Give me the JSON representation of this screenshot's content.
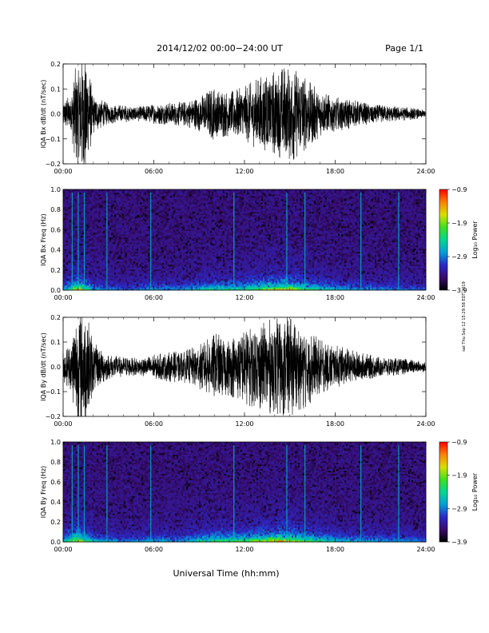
{
  "header": {
    "title": "2014/12/02   00:00−24:00 UT",
    "page": "Page 1/1"
  },
  "side_note": "sat Thu Sep 12 15:29:58 EDT 2019",
  "xaxis": {
    "label": "Universal Time (hh:mm)",
    "ticks": [
      "00:00",
      "06:00",
      "12:00",
      "18:00",
      "24:00"
    ]
  },
  "colorbar": {
    "label": "Log₁₀ Power",
    "ticks": [
      "−0.9",
      "−1.9",
      "−2.9",
      "−3.9"
    ],
    "colors": [
      "#000000",
      "#3a0b6e",
      "#2a2ac8",
      "#00a0d8",
      "#00d890",
      "#40e020",
      "#d8e000",
      "#ff8000",
      "#ff0000"
    ]
  },
  "chart_data": [
    {
      "type": "line",
      "ylabel": "IQA Bx dB/dt (nT/sec)",
      "xlim": [
        0,
        24
      ],
      "ylim": [
        -0.2,
        0.2
      ],
      "yticks": [
        "0.2",
        "0.1",
        "0.0",
        "−0.1",
        "−0.2"
      ],
      "envelope": {
        "x_hours": [
          0,
          0.5,
          1,
          1.5,
          2,
          3,
          4,
          5,
          6,
          7,
          8,
          9,
          9.5,
          10,
          11,
          12,
          13,
          14,
          15,
          16,
          17,
          18,
          19,
          20,
          21,
          22,
          23,
          24
        ],
        "amplitude": [
          0.05,
          0.08,
          0.25,
          0.25,
          0.08,
          0.04,
          0.035,
          0.03,
          0.04,
          0.045,
          0.05,
          0.07,
          0.09,
          0.11,
          0.09,
          0.11,
          0.15,
          0.18,
          0.2,
          0.15,
          0.09,
          0.07,
          0.06,
          0.045,
          0.035,
          0.03,
          0.025,
          0.015
        ]
      }
    },
    {
      "type": "heatmap",
      "ylabel": "IQA Bx Freq (Hz)",
      "xlim": [
        0,
        24
      ],
      "ylim": [
        0.0,
        1.0
      ],
      "yticks": [
        "1.0",
        "0.8",
        "0.6",
        "0.4",
        "0.2",
        "0.0"
      ],
      "zlim": [
        -3.9,
        -0.9
      ],
      "vertical_lines_hours": [
        0.6,
        1.0,
        1.4,
        2.9,
        5.8,
        11.3,
        14.8,
        16.0,
        19.7,
        22.2
      ],
      "activity": {
        "x_hours": [
          0,
          1,
          2,
          4,
          6,
          8,
          10,
          12,
          14,
          15,
          16,
          18,
          20,
          22,
          24
        ],
        "level": [
          0.3,
          0.9,
          0.35,
          0.2,
          0.3,
          0.3,
          0.5,
          0.5,
          0.8,
          0.85,
          0.6,
          0.35,
          0.3,
          0.25,
          0.2
        ]
      }
    },
    {
      "type": "line",
      "ylabel": "IQA By dB/dt (nT/sec)",
      "xlim": [
        0,
        24
      ],
      "ylim": [
        -0.2,
        0.2
      ],
      "yticks": [
        "0.2",
        "0.1",
        "0.0",
        "−0.1",
        "−0.2"
      ],
      "envelope": {
        "x_hours": [
          0,
          0.5,
          1,
          1.5,
          2,
          3,
          4,
          5,
          6,
          7,
          8,
          9,
          9.5,
          10,
          11,
          12,
          13,
          14,
          15,
          16,
          17,
          18,
          19,
          20,
          21,
          22,
          23,
          24
        ],
        "amplitude": [
          0.06,
          0.1,
          0.25,
          0.25,
          0.1,
          0.05,
          0.04,
          0.035,
          0.05,
          0.06,
          0.065,
          0.09,
          0.11,
          0.14,
          0.12,
          0.15,
          0.18,
          0.2,
          0.2,
          0.17,
          0.11,
          0.09,
          0.07,
          0.055,
          0.04,
          0.035,
          0.03,
          0.02
        ]
      }
    },
    {
      "type": "heatmap",
      "ylabel": "IQA By Freq (Hz)",
      "xlim": [
        0,
        24
      ],
      "ylim": [
        0.0,
        1.0
      ],
      "yticks": [
        "1.0",
        "0.8",
        "0.6",
        "0.4",
        "0.2",
        "0.0"
      ],
      "zlim": [
        -3.9,
        -0.9
      ],
      "vertical_lines_hours": [
        0.6,
        1.0,
        1.4,
        2.9,
        5.8,
        11.3,
        14.8,
        16.0,
        19.7,
        22.2
      ],
      "activity": {
        "x_hours": [
          0,
          1,
          2,
          4,
          6,
          8,
          10,
          12,
          14,
          15,
          16,
          18,
          20,
          22,
          24
        ],
        "level": [
          0.35,
          0.95,
          0.4,
          0.25,
          0.35,
          0.35,
          0.6,
          0.6,
          0.9,
          0.9,
          0.65,
          0.4,
          0.35,
          0.3,
          0.25
        ]
      }
    }
  ]
}
